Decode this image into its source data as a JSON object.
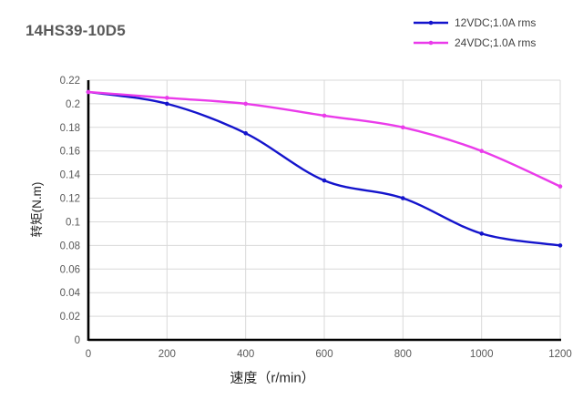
{
  "chart_data": {
    "type": "line",
    "title": "14HS39-10D5",
    "xlabel": "速度（r/min）",
    "ylabel": "转矩(N.m)",
    "x": [
      0,
      200,
      400,
      600,
      800,
      1000,
      1200
    ],
    "series": [
      {
        "name": "12VDC;1.0A rms",
        "color": "#1414CC",
        "values": [
          0.21,
          0.2,
          0.175,
          0.135,
          0.12,
          0.09,
          0.08
        ]
      },
      {
        "name": "24VDC;1.0A rms",
        "color": "#EA3BEA",
        "values": [
          0.21,
          0.205,
          0.2,
          0.19,
          0.18,
          0.16,
          0.13
        ]
      }
    ],
    "xlim": [
      0,
      1200
    ],
    "ylim": [
      0,
      0.22
    ],
    "x_ticks": [
      "0",
      "200",
      "400",
      "600",
      "800",
      "1000",
      "1200"
    ],
    "y_ticks": [
      "0",
      "0.02",
      "0.04",
      "0.06",
      "0.08",
      "0.1",
      "0.12",
      "0.14",
      "0.16",
      "0.18",
      "0.2",
      "0.22"
    ],
    "grid": true,
    "legend_position": "top-right",
    "grid_color": "#d9d9d9",
    "axis_color": "#000000",
    "tick_label_color": "#595959"
  }
}
